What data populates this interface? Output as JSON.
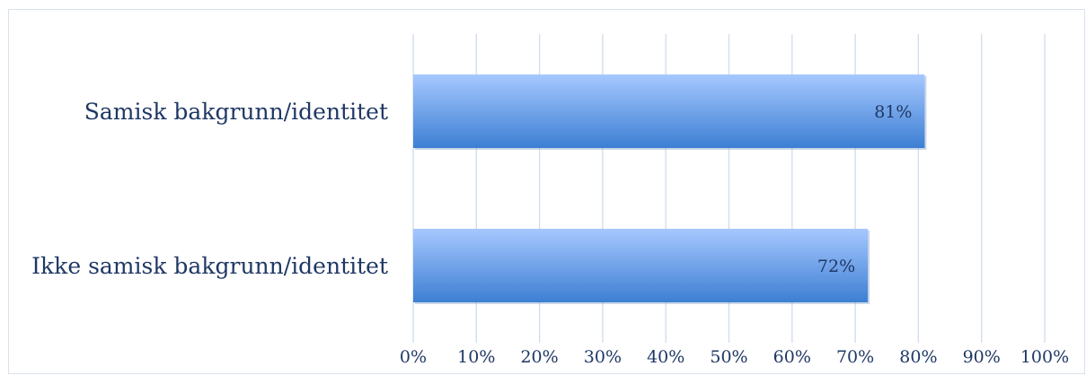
{
  "chart_data": {
    "type": "bar",
    "orientation": "horizontal",
    "categories": [
      "Samisk bakgrunn/identitet",
      "Ikke samisk bakgrunn/identitet"
    ],
    "values": [
      81,
      72
    ],
    "value_labels": [
      "81%",
      "72%"
    ],
    "x_ticks": [
      "0%",
      "10%",
      "20%",
      "30%",
      "40%",
      "50%",
      "60%",
      "70%",
      "80%",
      "90%",
      "100%"
    ],
    "xlim": [
      0,
      100
    ],
    "grid": true,
    "legend": "none",
    "colors": {
      "bar_top": "#a6c8ff",
      "bar_bottom": "#3d7fd3",
      "grid": "#d0dcec",
      "text": "#1f3864"
    }
  }
}
